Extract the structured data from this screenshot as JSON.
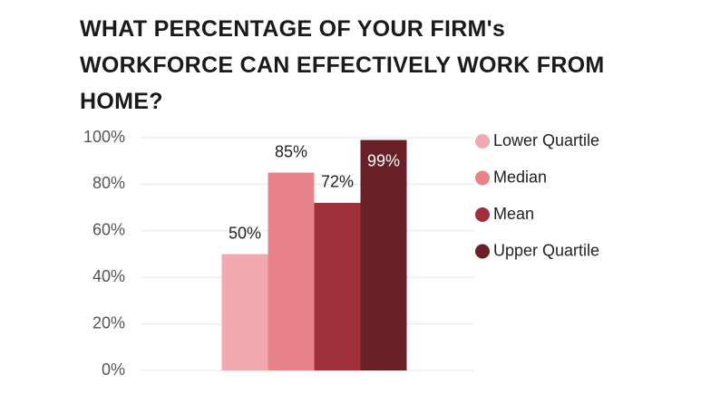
{
  "chart_data": {
    "type": "bar",
    "title": "WHAT PERCENTAGE OF YOUR FIRM's WORKFORCE CAN EFFECTIVELY WORK FROM HOME?",
    "categories": [
      null
    ],
    "series": [
      {
        "name": "Lower Quartile",
        "color": "#f0a9ae",
        "values": [
          50
        ],
        "value_labels": [
          "50%"
        ]
      },
      {
        "name": "Median",
        "color": "#e8838b",
        "values": [
          85
        ],
        "value_labels": [
          "85%"
        ]
      },
      {
        "name": "Mean",
        "color": "#9e2f3b",
        "values": [
          72
        ],
        "value_labels": [
          "72%"
        ]
      },
      {
        "name": "Upper Quartile",
        "color": "#6a2027",
        "values": [
          99
        ],
        "value_labels": [
          "99%"
        ]
      }
    ],
    "ylim": [
      0,
      100
    ],
    "yticks": [
      {
        "value": 0,
        "label": "0%"
      },
      {
        "value": 20,
        "label": "20%"
      },
      {
        "value": 40,
        "label": "40%"
      },
      {
        "value": 60,
        "label": "60%"
      },
      {
        "value": 80,
        "label": "80%"
      },
      {
        "value": 100,
        "label": "100%"
      }
    ],
    "grid": true,
    "legend": "right"
  }
}
